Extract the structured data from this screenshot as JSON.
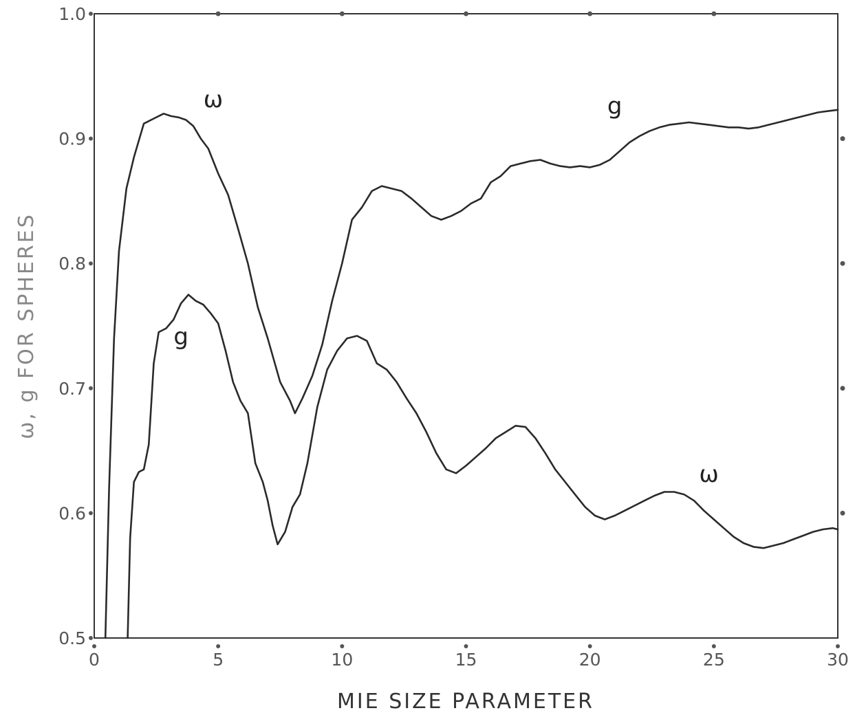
{
  "chart_data": {
    "type": "line",
    "title": "",
    "xlabel": "MIE SIZE PARAMETER",
    "ylabel": "ω, g FOR SPHERES",
    "xlim": [
      0,
      30
    ],
    "ylim": [
      0.5,
      1.0
    ],
    "x_ticks": [
      0,
      5,
      10,
      15,
      20,
      25,
      30
    ],
    "x_tick_labels": [
      "0",
      "5",
      "10",
      "15",
      "20",
      "25",
      "30"
    ],
    "y_ticks": [
      0.5,
      0.6,
      0.7,
      0.8,
      0.9,
      1.0
    ],
    "y_tick_labels": [
      "0.5",
      "0.6",
      "0.7",
      "0.8",
      "0.9",
      "1.0"
    ],
    "grid": false,
    "legend": "none",
    "series": [
      {
        "name": "ω",
        "x": [
          0.45,
          0.6,
          0.8,
          1.0,
          1.3,
          1.6,
          2.0,
          2.4,
          2.8,
          3.1,
          3.4,
          3.7,
          4.0,
          4.3,
          4.6,
          5.0,
          5.4,
          5.8,
          6.2,
          6.6,
          7.0,
          7.5,
          7.9,
          8.1,
          8.4,
          8.8,
          9.2,
          9.6,
          10.0,
          10.4,
          10.8,
          11.2,
          11.6,
          12.0,
          12.4,
          12.8,
          13.2,
          13.6,
          14.0,
          14.4,
          14.8,
          15.2,
          15.6,
          16.0,
          16.4,
          16.8,
          17.2,
          17.6,
          18.0,
          18.4,
          18.8,
          19.2,
          19.6,
          20.0,
          20.4,
          20.8,
          21.2,
          21.6,
          22.0,
          22.4,
          22.8,
          23.2,
          23.6,
          24.0,
          24.4,
          24.8,
          25.2,
          25.6,
          26.0,
          26.4,
          26.8,
          27.2,
          27.6,
          28.0,
          28.4,
          28.8,
          29.2,
          29.6,
          30.0
        ],
        "values": [
          0.5,
          0.62,
          0.74,
          0.81,
          0.86,
          0.885,
          0.912,
          0.916,
          0.92,
          0.918,
          0.917,
          0.915,
          0.91,
          0.9,
          0.892,
          0.872,
          0.855,
          0.828,
          0.8,
          0.765,
          0.74,
          0.705,
          0.69,
          0.68,
          0.692,
          0.71,
          0.735,
          0.77,
          0.8,
          0.835,
          0.845,
          0.858,
          0.862,
          0.86,
          0.858,
          0.852,
          0.845,
          0.838,
          0.835,
          0.838,
          0.842,
          0.848,
          0.852,
          0.865,
          0.87,
          0.878,
          0.88,
          0.882,
          0.883,
          0.88,
          0.878,
          0.877,
          0.878,
          0.877,
          0.879,
          0.883,
          0.89,
          0.897,
          0.902,
          0.906,
          0.909,
          0.911,
          0.912,
          0.913,
          0.912,
          0.911,
          0.91,
          0.909,
          0.909,
          0.908,
          0.909,
          0.911,
          0.913,
          0.915,
          0.917,
          0.919,
          0.921,
          0.922,
          0.923
        ]
      },
      {
        "name": "g",
        "x": [
          1.35,
          1.45,
          1.6,
          1.8,
          2.0,
          2.2,
          2.4,
          2.6,
          2.9,
          3.2,
          3.5,
          3.8,
          4.1,
          4.4,
          4.7,
          5.0,
          5.3,
          5.6,
          5.9,
          6.2,
          6.5,
          6.8,
          7.0,
          7.2,
          7.4,
          7.7,
          8.0,
          8.3,
          8.6,
          9.0,
          9.4,
          9.8,
          10.2,
          10.6,
          11.0,
          11.4,
          11.8,
          12.2,
          12.6,
          13.0,
          13.4,
          13.8,
          14.2,
          14.6,
          15.0,
          15.4,
          15.8,
          16.2,
          16.6,
          17.0,
          17.4,
          17.8,
          18.2,
          18.6,
          19.0,
          19.4,
          19.8,
          20.2,
          20.6,
          21.0,
          21.4,
          21.8,
          22.2,
          22.6,
          23.0,
          23.4,
          23.8,
          24.2,
          24.6,
          25.0,
          25.4,
          25.8,
          26.2,
          26.6,
          27.0,
          27.4,
          27.8,
          28.2,
          28.6,
          29.0,
          29.4,
          29.8,
          30.0
        ],
        "values": [
          0.5,
          0.58,
          0.625,
          0.633,
          0.635,
          0.655,
          0.72,
          0.745,
          0.748,
          0.755,
          0.768,
          0.775,
          0.77,
          0.767,
          0.76,
          0.752,
          0.73,
          0.705,
          0.69,
          0.68,
          0.64,
          0.625,
          0.61,
          0.59,
          0.575,
          0.585,
          0.605,
          0.615,
          0.64,
          0.685,
          0.715,
          0.73,
          0.74,
          0.742,
          0.738,
          0.72,
          0.715,
          0.705,
          0.692,
          0.68,
          0.665,
          0.648,
          0.635,
          0.632,
          0.638,
          0.645,
          0.652,
          0.66,
          0.665,
          0.67,
          0.669,
          0.66,
          0.648,
          0.635,
          0.625,
          0.615,
          0.605,
          0.598,
          0.595,
          0.598,
          0.602,
          0.606,
          0.61,
          0.614,
          0.617,
          0.617,
          0.615,
          0.61,
          0.602,
          0.595,
          0.588,
          0.581,
          0.576,
          0.573,
          0.572,
          0.574,
          0.576,
          0.579,
          0.582,
          0.585,
          0.587,
          0.588,
          0.587
        ]
      }
    ],
    "annotations": [
      {
        "text": "ω",
        "x": 4.8,
        "y": 0.925,
        "series": "ω"
      },
      {
        "text": "g",
        "x": 21.0,
        "y": 0.92,
        "series": "ω"
      },
      {
        "text": "g",
        "x": 3.5,
        "y": 0.735,
        "series": "g"
      },
      {
        "text": "ω",
        "x": 24.8,
        "y": 0.625,
        "series": "g"
      }
    ],
    "colors": {
      "line": "#2a2a2a",
      "axis": "#333333",
      "tick_text": "#555555"
    }
  }
}
